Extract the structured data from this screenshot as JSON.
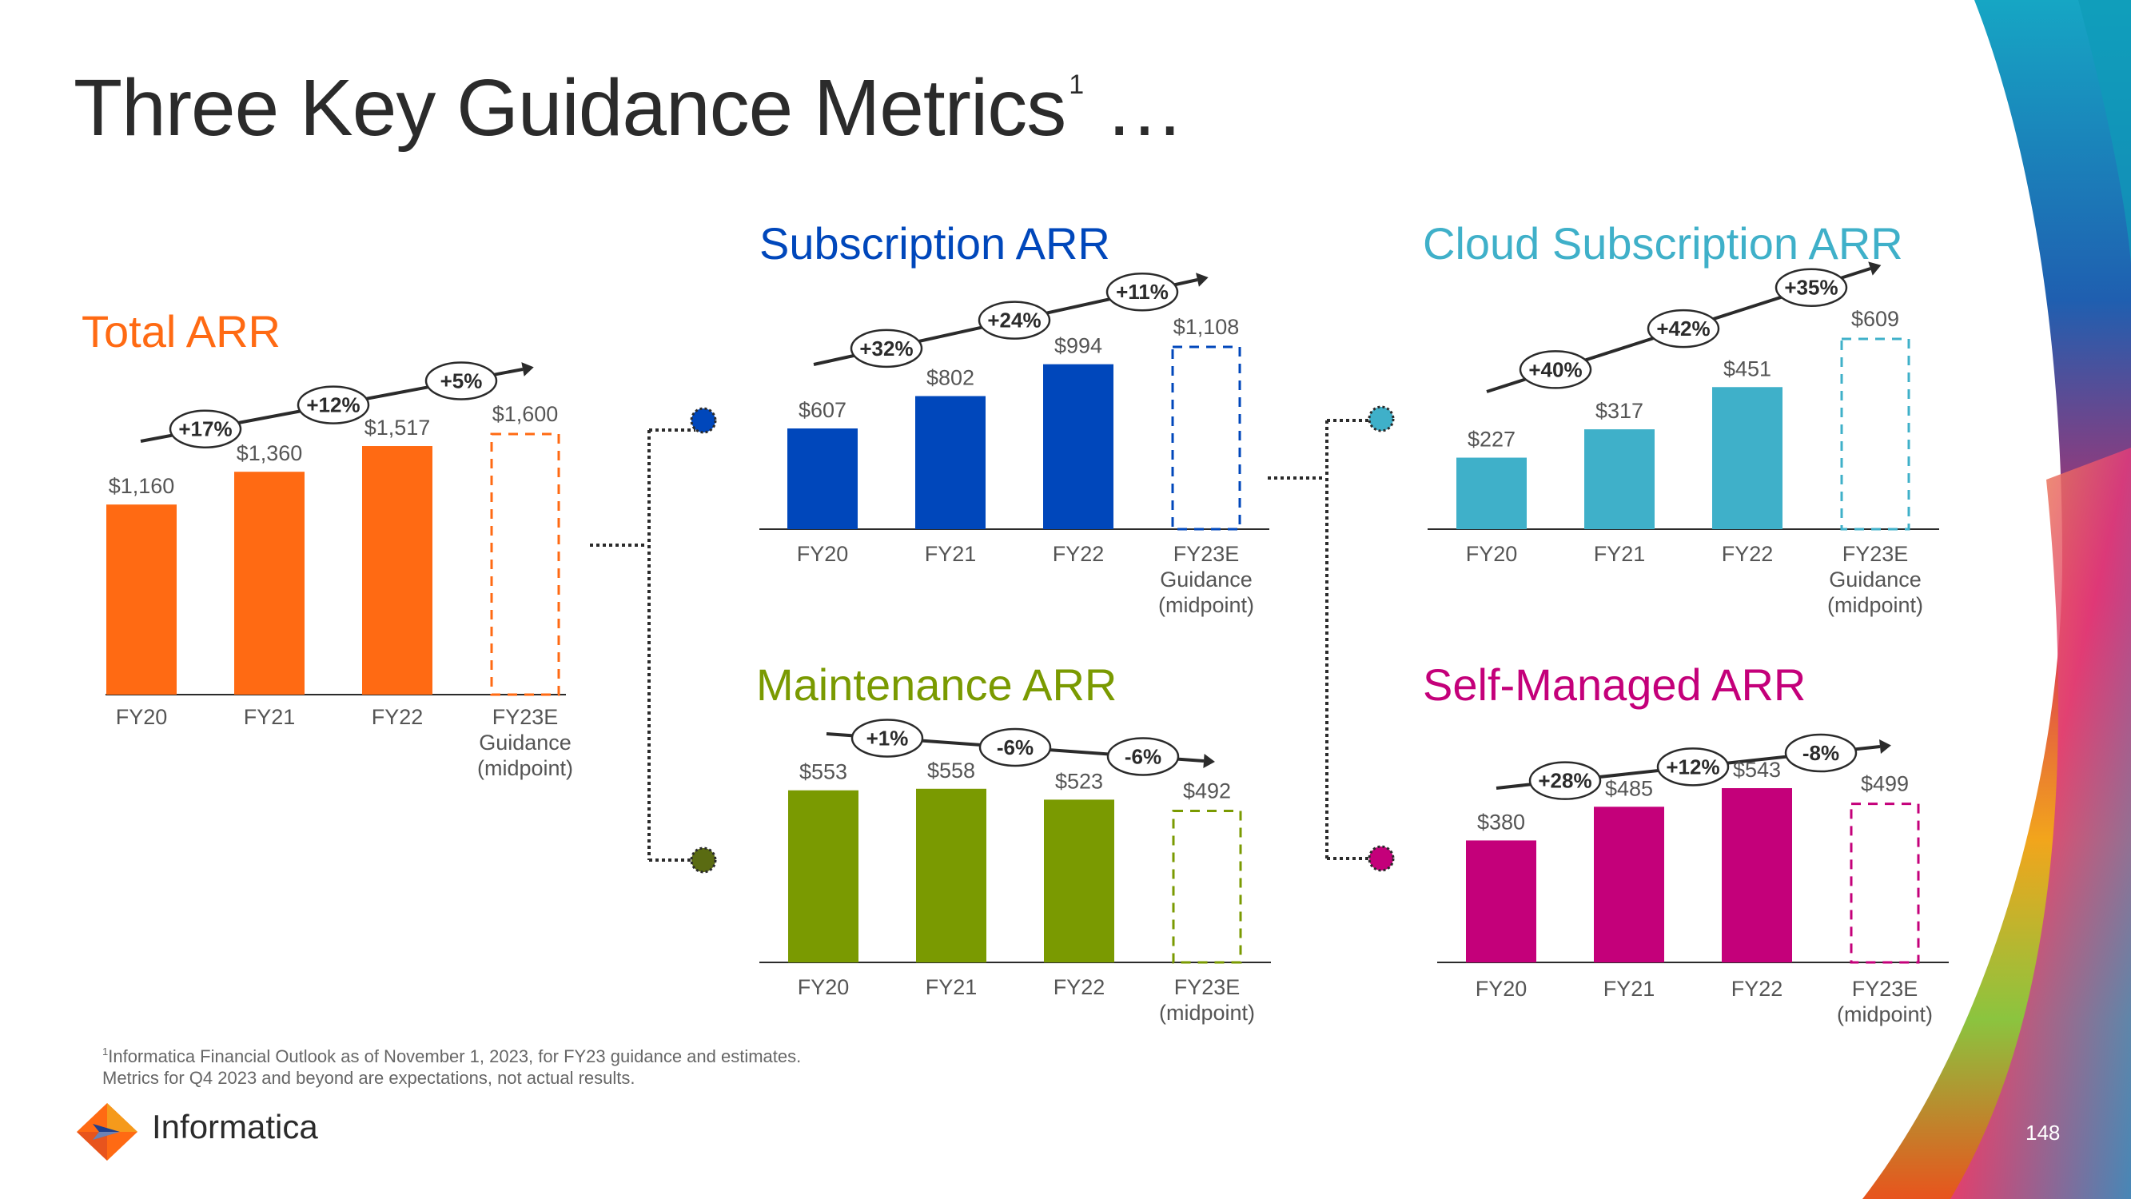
{
  "slide": {
    "title": "Three Key Guidance Metrics",
    "title_sup": "1",
    "title_suffix": " …",
    "footnote_sup": "1",
    "footnote_line1": "Informatica Financial Outlook as of November 1, 2023, for FY23 guidance and estimates.",
    "footnote_line2": "Metrics for Q4 2023 and beyond are expectations, not actual results.",
    "logo_text": "Informatica",
    "page_number": "148"
  },
  "colors": {
    "title": "#2b2b2b",
    "axis_text": "#555555",
    "total": "#ff6a13",
    "subscription": "#0047bb",
    "cloud": "#3fb0c9",
    "maintenance": "#7a9a01",
    "self_managed": "#c4007a"
  },
  "chart_data": [
    {
      "id": "total",
      "type": "bar",
      "title": "Total ARR",
      "color": "#ff6a13",
      "categories": [
        "FY20",
        "FY21",
        "FY22",
        "FY23E\nGuidance\n(midpoint)"
      ],
      "values": [
        1160,
        1360,
        1517,
        1600
      ],
      "value_labels": [
        "$1,160",
        "$1,360",
        "$1,517",
        "$1,600"
      ],
      "estimate_index": 3,
      "growth_labels": [
        "+17%",
        "+12%",
        "+5%"
      ],
      "ylim": [
        0,
        1600
      ]
    },
    {
      "id": "subscription",
      "type": "bar",
      "title": "Subscription ARR",
      "color": "#0047bb",
      "categories": [
        "FY20",
        "FY21",
        "FY22",
        "FY23E\nGuidance\n(midpoint)"
      ],
      "values": [
        607,
        802,
        994,
        1108
      ],
      "value_labels": [
        "$607",
        "$802",
        "$994",
        "$1,108"
      ],
      "estimate_index": 3,
      "growth_labels": [
        "+32%",
        "+24%",
        "+11%"
      ],
      "ylim": [
        0,
        1108
      ]
    },
    {
      "id": "cloud",
      "type": "bar",
      "title": "Cloud Subscription ARR",
      "color": "#3fb0c9",
      "categories": [
        "FY20",
        "FY21",
        "FY22",
        "FY23E\nGuidance\n(midpoint)"
      ],
      "values": [
        227,
        317,
        451,
        609
      ],
      "value_labels": [
        "$227",
        "$317",
        "$451",
        "$609"
      ],
      "estimate_index": 3,
      "growth_labels": [
        "+40%",
        "+42%",
        "+35%"
      ],
      "ylim": [
        0,
        609
      ]
    },
    {
      "id": "maintenance",
      "type": "bar",
      "title": "Maintenance ARR",
      "color": "#7a9a01",
      "categories": [
        "FY20",
        "FY21",
        "FY22",
        "FY23E\n(midpoint)"
      ],
      "values": [
        553,
        558,
        523,
        492
      ],
      "value_labels": [
        "$553",
        "$558",
        "$523",
        "$492"
      ],
      "estimate_index": 3,
      "growth_labels": [
        "+1%",
        "-6%",
        "-6%"
      ],
      "ylim": [
        0,
        560
      ]
    },
    {
      "id": "selfmanaged",
      "type": "bar",
      "title": "Self-Managed ARR",
      "color": "#c4007a",
      "categories": [
        "FY20",
        "FY21",
        "FY22",
        "FY23E\n(midpoint)"
      ],
      "values": [
        380,
        485,
        543,
        499
      ],
      "value_labels": [
        "$380",
        "$485",
        "$543",
        "$499"
      ],
      "estimate_index": 3,
      "growth_labels": [
        "+28%",
        "+12%",
        "-8%"
      ],
      "ylim": [
        0,
        543
      ]
    }
  ]
}
